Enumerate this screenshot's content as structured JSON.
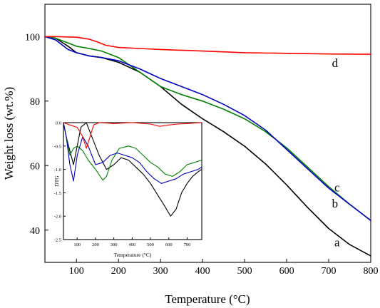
{
  "chart_data": [
    {
      "type": "line",
      "xlabel": "Temperature (°C)",
      "ylabel": "Weight loss (wt.%)",
      "xlim": [
        25,
        800
      ],
      "ylim": [
        30,
        110
      ],
      "xticks": [
        100,
        200,
        300,
        400,
        500,
        600,
        700,
        800
      ],
      "yticks": [
        40,
        60,
        80,
        100
      ],
      "grid": false,
      "legend": "none",
      "series": [
        {
          "name": "a",
          "color": "#000000",
          "x": [
            25,
            50,
            80,
            100,
            130,
            160,
            200,
            250,
            300,
            350,
            400,
            450,
            500,
            550,
            600,
            650,
            700,
            750,
            800
          ],
          "y": [
            100,
            99.5,
            97,
            95,
            94,
            93.5,
            92,
            89,
            84.5,
            79,
            74.5,
            70.5,
            66,
            60.5,
            54,
            47,
            40.5,
            35.5,
            32
          ]
        },
        {
          "name": "b",
          "color": "#008000",
          "x": [
            25,
            50,
            80,
            100,
            130,
            160,
            200,
            250,
            300,
            350,
            400,
            450,
            500,
            550,
            600,
            650,
            700,
            750,
            800
          ],
          "y": [
            100,
            99.5,
            98,
            97,
            96.3,
            95.5,
            93.5,
            89,
            84.5,
            82,
            80,
            77.5,
            74.5,
            70.5,
            65.5,
            59.5,
            53.5,
            48,
            43
          ]
        },
        {
          "name": "c",
          "color": "#0000c0",
          "x": [
            25,
            50,
            80,
            100,
            130,
            160,
            200,
            250,
            300,
            350,
            400,
            450,
            500,
            550,
            600,
            650,
            700,
            750,
            800
          ],
          "y": [
            100,
            99,
            96,
            95,
            94,
            93.5,
            92.5,
            90,
            87,
            84.5,
            82,
            79,
            75.5,
            71,
            65,
            59,
            53,
            48,
            43
          ]
        },
        {
          "name": "d",
          "color": "#ff0000",
          "x": [
            25,
            50,
            100,
            130,
            150,
            170,
            200,
            250,
            300,
            400,
            500,
            600,
            700,
            800
          ],
          "y": [
            100,
            100,
            99.8,
            99.2,
            98.3,
            97.3,
            96.6,
            96.3,
            96.0,
            95.5,
            95.0,
            94.8,
            94.6,
            94.5
          ]
        }
      ],
      "curve_labels": [
        {
          "text": "d",
          "x": 715,
          "y": 90.5
        },
        {
          "text": "c",
          "x": 720,
          "y": 52
        },
        {
          "text": "b",
          "x": 715,
          "y": 47
        },
        {
          "text": "a",
          "x": 720,
          "y": 35
        }
      ]
    },
    {
      "type": "line",
      "inset": true,
      "xlabel": "Temperature (°C)",
      "ylabel": "DTG",
      "xlim": [
        25,
        780
      ],
      "ylim": [
        -2.5,
        0.0
      ],
      "xticks": [
        100,
        200,
        300,
        400,
        500,
        600,
        700
      ],
      "yticks": [
        0.0,
        -0.5,
        -1.0,
        -1.5,
        -2.0,
        -2.5
      ],
      "ytick_labels": [
        "0.0",
        "-0.5",
        "-1.0",
        "-1.5",
        "-2.0",
        "-2.5"
      ],
      "series": [
        {
          "name": "a",
          "color": "#000000",
          "x": [
            25,
            40,
            60,
            80,
            100,
            120,
            150,
            180,
            220,
            260,
            300,
            340,
            380,
            420,
            460,
            500,
            540,
            580,
            610,
            640,
            670,
            700,
            730,
            760,
            780
          ],
          "y": [
            0,
            -0.3,
            -0.6,
            -0.9,
            -0.5,
            -0.1,
            0.0,
            -0.3,
            -0.7,
            -1.0,
            -0.9,
            -0.75,
            -0.8,
            -0.95,
            -1.1,
            -1.3,
            -1.55,
            -1.8,
            -2.0,
            -1.85,
            -1.5,
            -1.3,
            -1.15,
            -1.05,
            -1.0
          ]
        },
        {
          "name": "b",
          "color": "#008000",
          "x": [
            25,
            40,
            60,
            80,
            100,
            130,
            160,
            200,
            240,
            260,
            290,
            330,
            380,
            420,
            460,
            500,
            540,
            580,
            620,
            660,
            700,
            740,
            780
          ],
          "y": [
            0,
            -0.3,
            -0.7,
            -0.55,
            -0.5,
            -0.6,
            -0.8,
            -1.0,
            -1.23,
            -1.15,
            -0.8,
            -0.55,
            -0.5,
            -0.55,
            -0.7,
            -0.85,
            -0.95,
            -1.1,
            -1.15,
            -1.05,
            -0.9,
            -0.85,
            -0.8
          ]
        },
        {
          "name": "c",
          "color": "#0000c0",
          "x": [
            25,
            40,
            60,
            80,
            100,
            130,
            160,
            200,
            240,
            280,
            320,
            360,
            400,
            440,
            480,
            520,
            560,
            600,
            640,
            680,
            720,
            760,
            780
          ],
          "y": [
            0,
            -0.3,
            -0.9,
            -1.25,
            -0.7,
            -0.3,
            -0.5,
            -0.9,
            -0.85,
            -0.7,
            -0.65,
            -0.7,
            -0.75,
            -0.85,
            -1.05,
            -1.2,
            -1.3,
            -1.25,
            -1.2,
            -1.1,
            -1.05,
            -1.0,
            -0.95
          ]
        },
        {
          "name": "d",
          "color": "#ff0000",
          "x": [
            25,
            60,
            100,
            130,
            150,
            170,
            190,
            220,
            300,
            400,
            500,
            550,
            600,
            650,
            700,
            780
          ],
          "y": [
            0,
            -0.05,
            -0.1,
            -0.3,
            -0.55,
            -0.3,
            -0.05,
            0.0,
            -0.02,
            0.0,
            -0.03,
            -0.08,
            -0.05,
            -0.03,
            -0.02,
            0.0
          ]
        }
      ]
    }
  ]
}
